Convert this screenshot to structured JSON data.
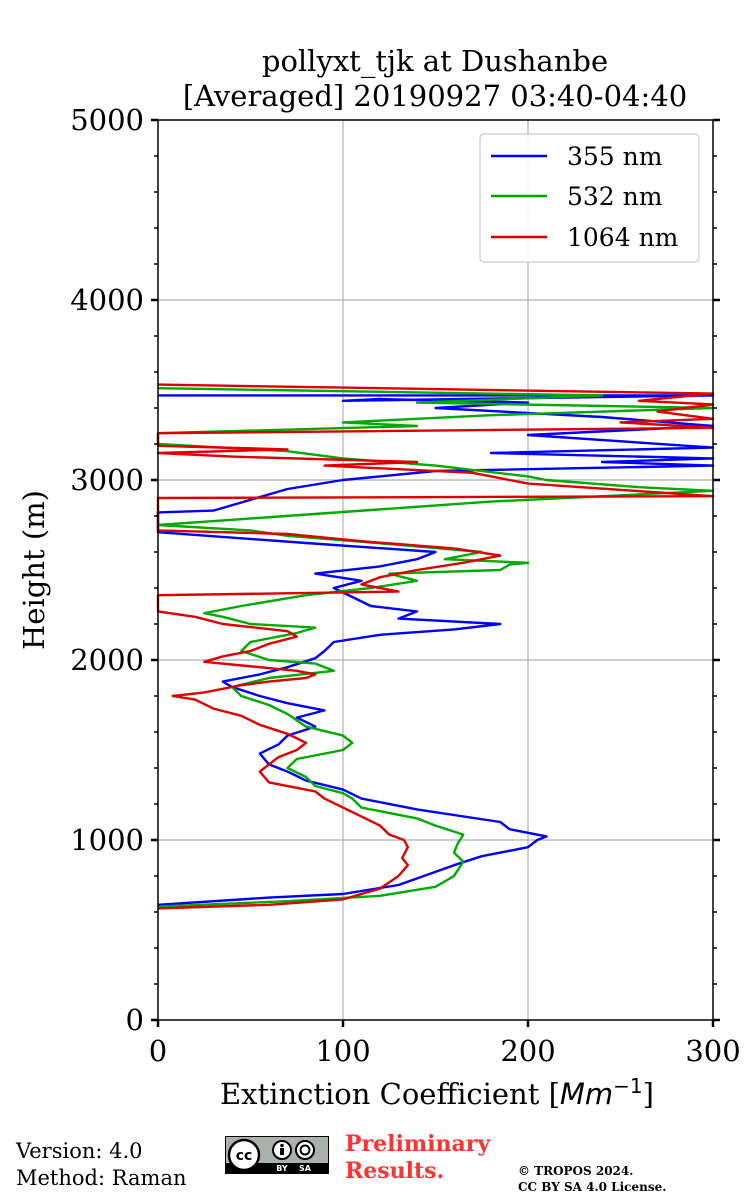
{
  "chart_data": {
    "type": "line",
    "title_line1": "pollyxt_tjk at Dushanbe",
    "title_line2": "[Averaged] 20190927 03:40-04:40",
    "xlabel": "Extinction Coefficient [",
    "xlabel_unit": "Mm",
    "xlabel_exp": "−1",
    "xlabel_end": "]",
    "ylabel": "Height (m)",
    "xlim": [
      0,
      300
    ],
    "ylim": [
      0,
      5000
    ],
    "xticks": [
      0,
      100,
      200,
      300
    ],
    "yticks": [
      0,
      1000,
      2000,
      3000,
      4000,
      5000
    ],
    "grid": true,
    "legend_position": "top-right",
    "series": [
      {
        "name": "355 nm",
        "color": "#0000ff",
        "points": [
          [
            0,
            640
          ],
          [
            60,
            680
          ],
          [
            100,
            700
          ],
          [
            130,
            750
          ],
          [
            160,
            860
          ],
          [
            175,
            910
          ],
          [
            200,
            960
          ],
          [
            205,
            1000
          ],
          [
            210,
            1020
          ],
          [
            190,
            1060
          ],
          [
            185,
            1100
          ],
          [
            140,
            1170
          ],
          [
            110,
            1230
          ],
          [
            100,
            1280
          ],
          [
            80,
            1330
          ],
          [
            70,
            1380
          ],
          [
            60,
            1420
          ],
          [
            55,
            1480
          ],
          [
            65,
            1530
          ],
          [
            70,
            1580
          ],
          [
            85,
            1630
          ],
          [
            75,
            1680
          ],
          [
            90,
            1720
          ],
          [
            70,
            1760
          ],
          [
            55,
            1800
          ],
          [
            40,
            1850
          ],
          [
            35,
            1880
          ],
          [
            55,
            1920
          ],
          [
            70,
            1960
          ],
          [
            85,
            2010
          ],
          [
            90,
            2050
          ],
          [
            95,
            2100
          ],
          [
            120,
            2140
          ],
          [
            160,
            2170
          ],
          [
            185,
            2200
          ],
          [
            130,
            2230
          ],
          [
            140,
            2270
          ],
          [
            115,
            2300
          ],
          [
            105,
            2350
          ],
          [
            95,
            2400
          ],
          [
            110,
            2440
          ],
          [
            85,
            2480
          ],
          [
            120,
            2520
          ],
          [
            140,
            2560
          ],
          [
            150,
            2600
          ],
          [
            80,
            2650
          ],
          [
            0,
            2710
          ],
          [
            0,
            2740
          ],
          [
            0,
            2820
          ],
          [
            30,
            2830
          ],
          [
            70,
            2950
          ],
          [
            100,
            3000
          ],
          [
            150,
            3050
          ],
          [
            300,
            3080
          ],
          [
            240,
            3100
          ],
          [
            300,
            3120
          ],
          [
            180,
            3150
          ],
          [
            300,
            3180
          ],
          [
            200,
            3250
          ],
          [
            300,
            3300
          ],
          [
            240,
            3350
          ],
          [
            150,
            3400
          ],
          [
            200,
            3430
          ],
          [
            120,
            3450
          ],
          [
            100,
            3440
          ],
          [
            300,
            3470
          ],
          [
            0,
            3470
          ]
        ]
      },
      {
        "name": "532 nm",
        "color": "#00aa00",
        "points": [
          [
            0,
            630
          ],
          [
            70,
            660
          ],
          [
            120,
            690
          ],
          [
            150,
            740
          ],
          [
            160,
            800
          ],
          [
            165,
            880
          ],
          [
            160,
            930
          ],
          [
            162,
            980
          ],
          [
            165,
            1030
          ],
          [
            150,
            1080
          ],
          [
            140,
            1120
          ],
          [
            110,
            1180
          ],
          [
            105,
            1230
          ],
          [
            100,
            1260
          ],
          [
            85,
            1300
          ],
          [
            80,
            1350
          ],
          [
            70,
            1400
          ],
          [
            75,
            1450
          ],
          [
            100,
            1500
          ],
          [
            105,
            1540
          ],
          [
            100,
            1580
          ],
          [
            80,
            1630
          ],
          [
            70,
            1700
          ],
          [
            60,
            1750
          ],
          [
            45,
            1800
          ],
          [
            40,
            1850
          ],
          [
            60,
            1900
          ],
          [
            95,
            1940
          ],
          [
            85,
            1980
          ],
          [
            60,
            2000
          ],
          [
            45,
            2050
          ],
          [
            50,
            2100
          ],
          [
            75,
            2150
          ],
          [
            85,
            2180
          ],
          [
            50,
            2200
          ],
          [
            35,
            2240
          ],
          [
            25,
            2260
          ],
          [
            45,
            2300
          ],
          [
            80,
            2360
          ],
          [
            115,
            2400
          ],
          [
            140,
            2440
          ],
          [
            125,
            2480
          ],
          [
            185,
            2500
          ],
          [
            190,
            2530
          ],
          [
            200,
            2540
          ],
          [
            155,
            2560
          ],
          [
            175,
            2600
          ],
          [
            130,
            2640
          ],
          [
            70,
            2690
          ],
          [
            50,
            2720
          ],
          [
            0,
            2750
          ],
          [
            180,
            2880
          ],
          [
            300,
            2940
          ],
          [
            260,
            2960
          ],
          [
            210,
            3000
          ],
          [
            200,
            3020
          ],
          [
            150,
            3080
          ],
          [
            100,
            3120
          ],
          [
            70,
            3160
          ],
          [
            0,
            3200
          ],
          [
            0,
            3260
          ],
          [
            140,
            3300
          ],
          [
            100,
            3320
          ],
          [
            180,
            3360
          ],
          [
            300,
            3400
          ],
          [
            140,
            3430
          ],
          [
            240,
            3470
          ],
          [
            0,
            3510
          ]
        ]
      },
      {
        "name": "1064 nm",
        "color": "#dd0000",
        "points": [
          [
            0,
            620
          ],
          [
            60,
            640
          ],
          [
            100,
            670
          ],
          [
            120,
            730
          ],
          [
            130,
            800
          ],
          [
            135,
            860
          ],
          [
            132,
            900
          ],
          [
            135,
            960
          ],
          [
            133,
            1000
          ],
          [
            125,
            1030
          ],
          [
            120,
            1080
          ],
          [
            110,
            1130
          ],
          [
            100,
            1180
          ],
          [
            90,
            1230
          ],
          [
            85,
            1270
          ],
          [
            60,
            1320
          ],
          [
            55,
            1380
          ],
          [
            60,
            1420
          ],
          [
            65,
            1460
          ],
          [
            75,
            1500
          ],
          [
            80,
            1540
          ],
          [
            70,
            1590
          ],
          [
            55,
            1640
          ],
          [
            45,
            1690
          ],
          [
            30,
            1730
          ],
          [
            20,
            1780
          ],
          [
            8,
            1800
          ],
          [
            25,
            1820
          ],
          [
            45,
            1860
          ],
          [
            60,
            1880
          ],
          [
            80,
            1900
          ],
          [
            85,
            1920
          ],
          [
            75,
            1940
          ],
          [
            55,
            1960
          ],
          [
            25,
            1990
          ],
          [
            35,
            2020
          ],
          [
            50,
            2050
          ],
          [
            60,
            2090
          ],
          [
            75,
            2130
          ],
          [
            70,
            2160
          ],
          [
            35,
            2200
          ],
          [
            20,
            2240
          ],
          [
            0,
            2270
          ],
          [
            0,
            2360
          ],
          [
            130,
            2380
          ],
          [
            110,
            2420
          ],
          [
            120,
            2460
          ],
          [
            140,
            2500
          ],
          [
            165,
            2540
          ],
          [
            185,
            2580
          ],
          [
            160,
            2620
          ],
          [
            110,
            2660
          ],
          [
            70,
            2700
          ],
          [
            0,
            2720
          ],
          [
            0,
            2900
          ],
          [
            300,
            2910
          ],
          [
            200,
            2980
          ],
          [
            190,
            3000
          ],
          [
            170,
            3040
          ],
          [
            90,
            3080
          ],
          [
            140,
            3100
          ],
          [
            40,
            3130
          ],
          [
            0,
            3150
          ],
          [
            70,
            3170
          ],
          [
            0,
            3190
          ],
          [
            0,
            3260
          ],
          [
            300,
            3290
          ],
          [
            250,
            3320
          ],
          [
            300,
            3340
          ],
          [
            270,
            3380
          ],
          [
            300,
            3420
          ],
          [
            260,
            3440
          ],
          [
            300,
            3480
          ],
          [
            0,
            3530
          ]
        ]
      }
    ]
  },
  "footer": {
    "version": "Version: 4.0",
    "method": "Method: Raman",
    "preliminary_line1": "Preliminary",
    "preliminary_line2": "Results.",
    "copyright_line1": "© TROPOS 2024.",
    "copyright_line2": "CC BY SA 4.0 License.",
    "cc_label": "cc",
    "cc_by": "BY",
    "cc_sa": "SA"
  }
}
